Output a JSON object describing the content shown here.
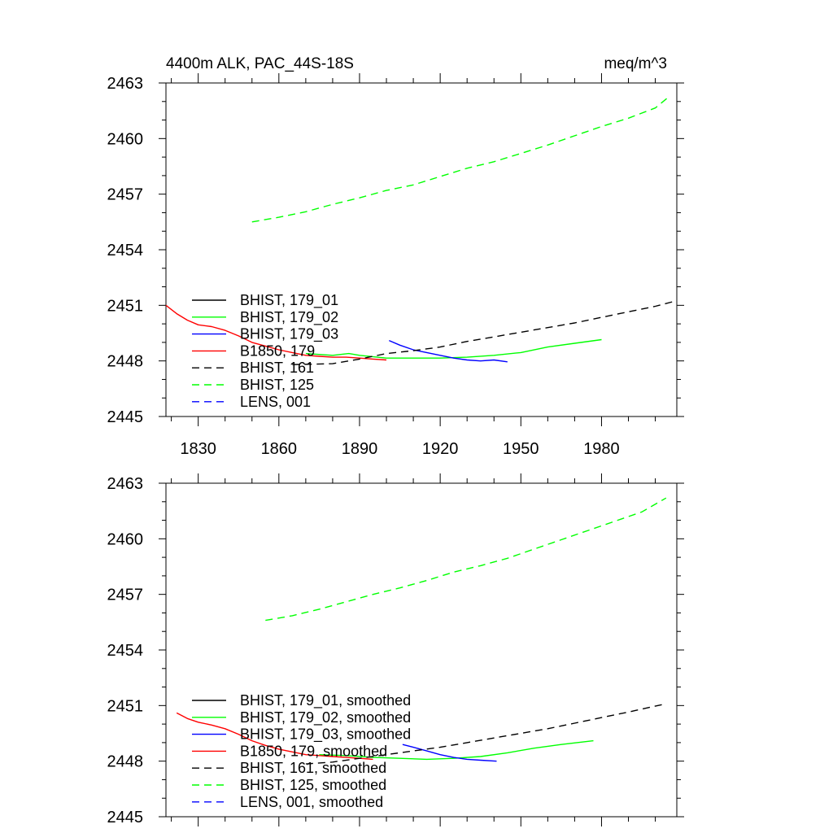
{
  "chart_data": [
    {
      "type": "line",
      "title_left": "4400m ALK, PAC_44S-18S",
      "title_right": "meq/m^3",
      "xlim": [
        1818,
        2008
      ],
      "ylim": [
        2445,
        2463
      ],
      "x_ticks": [
        1830,
        1860,
        1890,
        1920,
        1950,
        1980
      ],
      "y_ticks": [
        2445,
        2448,
        2451,
        2454,
        2457,
        2460,
        2463
      ],
      "show_x_tick_labels": true,
      "legend_position": "lower-left",
      "series": [
        {
          "name": "BHIST, 179_01",
          "color": "#000000",
          "dash": "solid",
          "x": [],
          "y": []
        },
        {
          "name": "BHIST, 179_02",
          "color": "#00ff00",
          "dash": "solid",
          "x": [
            1870,
            1880,
            1886,
            1890,
            1900,
            1910,
            1920,
            1930,
            1940,
            1950,
            1960,
            1970,
            1980
          ],
          "y": [
            2448.4,
            2448.3,
            2448.4,
            2448.3,
            2448.15,
            2448.15,
            2448.15,
            2448.2,
            2448.3,
            2448.45,
            2448.75,
            2448.95,
            2449.15
          ]
        },
        {
          "name": "BHIST, 179_03",
          "color": "#0000ff",
          "dash": "solid",
          "x": [
            1901,
            1905,
            1910,
            1915,
            1920,
            1925,
            1930,
            1935,
            1940,
            1945
          ],
          "y": [
            2449.1,
            2448.85,
            2448.6,
            2448.45,
            2448.3,
            2448.15,
            2448.05,
            2448.0,
            2448.05,
            2447.95
          ]
        },
        {
          "name": "B1850, 179",
          "color": "#ff0000",
          "dash": "solid",
          "x": [
            1818,
            1822,
            1826,
            1830,
            1835,
            1840,
            1845,
            1850,
            1855,
            1860,
            1865,
            1870,
            1875,
            1880,
            1885,
            1890,
            1895,
            1900
          ],
          "y": [
            2451.0,
            2450.55,
            2450.2,
            2449.95,
            2449.85,
            2449.65,
            2449.35,
            2449.0,
            2448.8,
            2448.6,
            2448.45,
            2448.3,
            2448.25,
            2448.2,
            2448.2,
            2448.15,
            2448.1,
            2448.05
          ]
        },
        {
          "name": "BHIST, 161",
          "color": "#000000",
          "dash": "dashed",
          "x": [
            1865,
            1880,
            1890,
            1900,
            1910,
            1920,
            1930,
            1940,
            1950,
            1960,
            1970,
            1980,
            1990,
            2000,
            2008
          ],
          "y": [
            2447.8,
            2447.85,
            2448.1,
            2448.4,
            2448.55,
            2448.75,
            2449.05,
            2449.3,
            2449.55,
            2449.8,
            2450.05,
            2450.35,
            2450.65,
            2450.95,
            2451.25
          ]
        },
        {
          "name": "BHIST, 125",
          "color": "#00ff00",
          "dash": "dashed",
          "x": [
            1850,
            1860,
            1870,
            1880,
            1890,
            1900,
            1910,
            1920,
            1930,
            1940,
            1950,
            1960,
            1970,
            1980,
            1990,
            2000,
            2005
          ],
          "y": [
            2455.5,
            2455.75,
            2456.05,
            2456.45,
            2456.8,
            2457.2,
            2457.5,
            2457.95,
            2458.4,
            2458.75,
            2459.2,
            2459.65,
            2460.15,
            2460.65,
            2461.1,
            2461.65,
            2462.25
          ]
        },
        {
          "name": "LENS, 001",
          "color": "#0000ff",
          "dash": "dashed",
          "x": [],
          "y": []
        }
      ]
    },
    {
      "type": "line",
      "xlim": [
        1818,
        2008
      ],
      "ylim": [
        2445,
        2463
      ],
      "x_ticks": [
        1830,
        1860,
        1890,
        1920,
        1950,
        1980
      ],
      "y_ticks": [
        2445,
        2448,
        2451,
        2454,
        2457,
        2460,
        2463
      ],
      "show_x_tick_labels": false,
      "legend_position": "lower-left",
      "series": [
        {
          "name": "BHIST, 179_01, smoothed",
          "color": "#000000",
          "dash": "solid",
          "x": [],
          "y": []
        },
        {
          "name": "BHIST, 179_02, smoothed",
          "color": "#00ff00",
          "dash": "solid",
          "x": [
            1875,
            1885,
            1895,
            1905,
            1915,
            1925,
            1935,
            1945,
            1955,
            1965,
            1977
          ],
          "y": [
            2448.35,
            2448.3,
            2448.2,
            2448.15,
            2448.1,
            2448.15,
            2448.25,
            2448.45,
            2448.7,
            2448.9,
            2449.1
          ]
        },
        {
          "name": "BHIST, 179_03, smoothed",
          "color": "#0000ff",
          "dash": "solid",
          "x": [
            1906,
            1910,
            1915,
            1920,
            1925,
            1930,
            1935,
            1941
          ],
          "y": [
            2448.9,
            2448.75,
            2448.55,
            2448.35,
            2448.2,
            2448.1,
            2448.05,
            2448.0
          ]
        },
        {
          "name": "B1850, 179, smoothed",
          "color": "#ff0000",
          "dash": "solid",
          "x": [
            1822,
            1826,
            1830,
            1835,
            1840,
            1845,
            1850,
            1855,
            1860,
            1865,
            1870,
            1875,
            1880,
            1885,
            1890,
            1895
          ],
          "y": [
            2450.6,
            2450.3,
            2450.1,
            2449.95,
            2449.75,
            2449.45,
            2449.1,
            2448.85,
            2448.65,
            2448.5,
            2448.35,
            2448.3,
            2448.25,
            2448.2,
            2448.15,
            2448.1
          ]
        },
        {
          "name": "BHIST, 161, smoothed",
          "color": "#000000",
          "dash": "dashed",
          "x": [
            1870,
            1880,
            1890,
            1900,
            1910,
            1920,
            1930,
            1940,
            1950,
            1960,
            1970,
            1980,
            1990,
            2004
          ],
          "y": [
            2447.85,
            2447.95,
            2448.15,
            2448.35,
            2448.55,
            2448.75,
            2449.0,
            2449.25,
            2449.5,
            2449.75,
            2450.05,
            2450.35,
            2450.65,
            2451.1
          ]
        },
        {
          "name": "BHIST, 125, smoothed",
          "color": "#00ff00",
          "dash": "dashed",
          "x": [
            1855,
            1865,
            1875,
            1885,
            1895,
            1905,
            1915,
            1925,
            1935,
            1945,
            1955,
            1965,
            1975,
            1985,
            1995,
            2004
          ],
          "y": [
            2455.6,
            2455.85,
            2456.2,
            2456.6,
            2457.0,
            2457.35,
            2457.75,
            2458.2,
            2458.55,
            2458.95,
            2459.45,
            2459.95,
            2460.45,
            2460.95,
            2461.45,
            2462.2
          ]
        },
        {
          "name": "LENS, 001, smoothed",
          "color": "#0000ff",
          "dash": "dashed",
          "x": [],
          "y": []
        }
      ]
    }
  ]
}
